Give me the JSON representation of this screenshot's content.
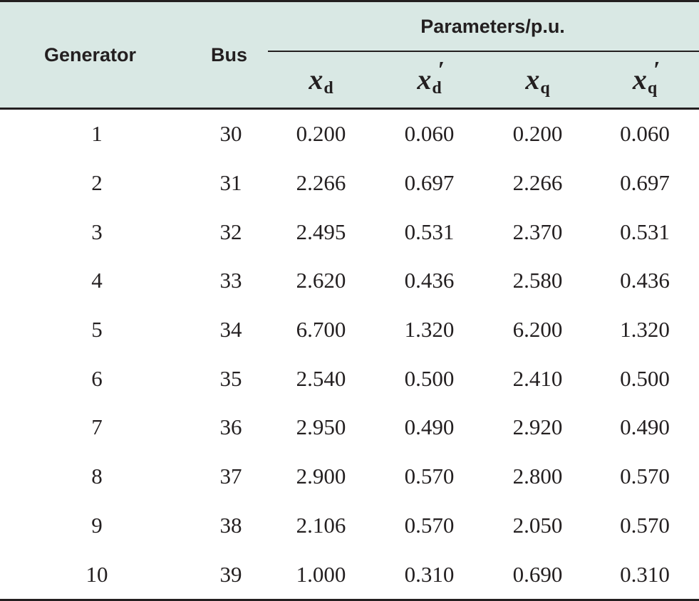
{
  "table": {
    "headers": {
      "generator": "Generator",
      "bus": "Bus",
      "group": "Parameters/p.u.",
      "xd": {
        "symbol": "x",
        "sub": "d",
        "prime": ""
      },
      "xd_prime": {
        "symbol": "x",
        "sub": "d",
        "prime": "′"
      },
      "xq": {
        "symbol": "x",
        "sub": "q",
        "prime": ""
      },
      "xq_prime": {
        "symbol": "x",
        "sub": "q",
        "prime": "′"
      }
    },
    "rows": [
      {
        "generator": "1",
        "bus": "30",
        "xd": "0.200",
        "xd_prime": "0.060",
        "xq": "0.200",
        "xq_prime": "0.060"
      },
      {
        "generator": "2",
        "bus": "31",
        "xd": "2.266",
        "xd_prime": "0.697",
        "xq": "2.266",
        "xq_prime": "0.697"
      },
      {
        "generator": "3",
        "bus": "32",
        "xd": "2.495",
        "xd_prime": "0.531",
        "xq": "2.370",
        "xq_prime": "0.531"
      },
      {
        "generator": "4",
        "bus": "33",
        "xd": "2.620",
        "xd_prime": "0.436",
        "xq": "2.580",
        "xq_prime": "0.436"
      },
      {
        "generator": "5",
        "bus": "34",
        "xd": "6.700",
        "xd_prime": "1.320",
        "xq": "6.200",
        "xq_prime": "1.320"
      },
      {
        "generator": "6",
        "bus": "35",
        "xd": "2.540",
        "xd_prime": "0.500",
        "xq": "2.410",
        "xq_prime": "0.500"
      },
      {
        "generator": "7",
        "bus": "36",
        "xd": "2.950",
        "xd_prime": "0.490",
        "xq": "2.920",
        "xq_prime": "0.490"
      },
      {
        "generator": "8",
        "bus": "37",
        "xd": "2.900",
        "xd_prime": "0.570",
        "xq": "2.800",
        "xq_prime": "0.570"
      },
      {
        "generator": "9",
        "bus": "38",
        "xd": "2.106",
        "xd_prime": "0.570",
        "xq": "2.050",
        "xq_prime": "0.570"
      },
      {
        "generator": "10",
        "bus": "39",
        "xd": "1.000",
        "xd_prime": "0.310",
        "xq": "0.690",
        "xq_prime": "0.310"
      }
    ]
  },
  "colors": {
    "header_background": "#d9e8e4",
    "rule": "#231f20",
    "text": "#231f20"
  }
}
